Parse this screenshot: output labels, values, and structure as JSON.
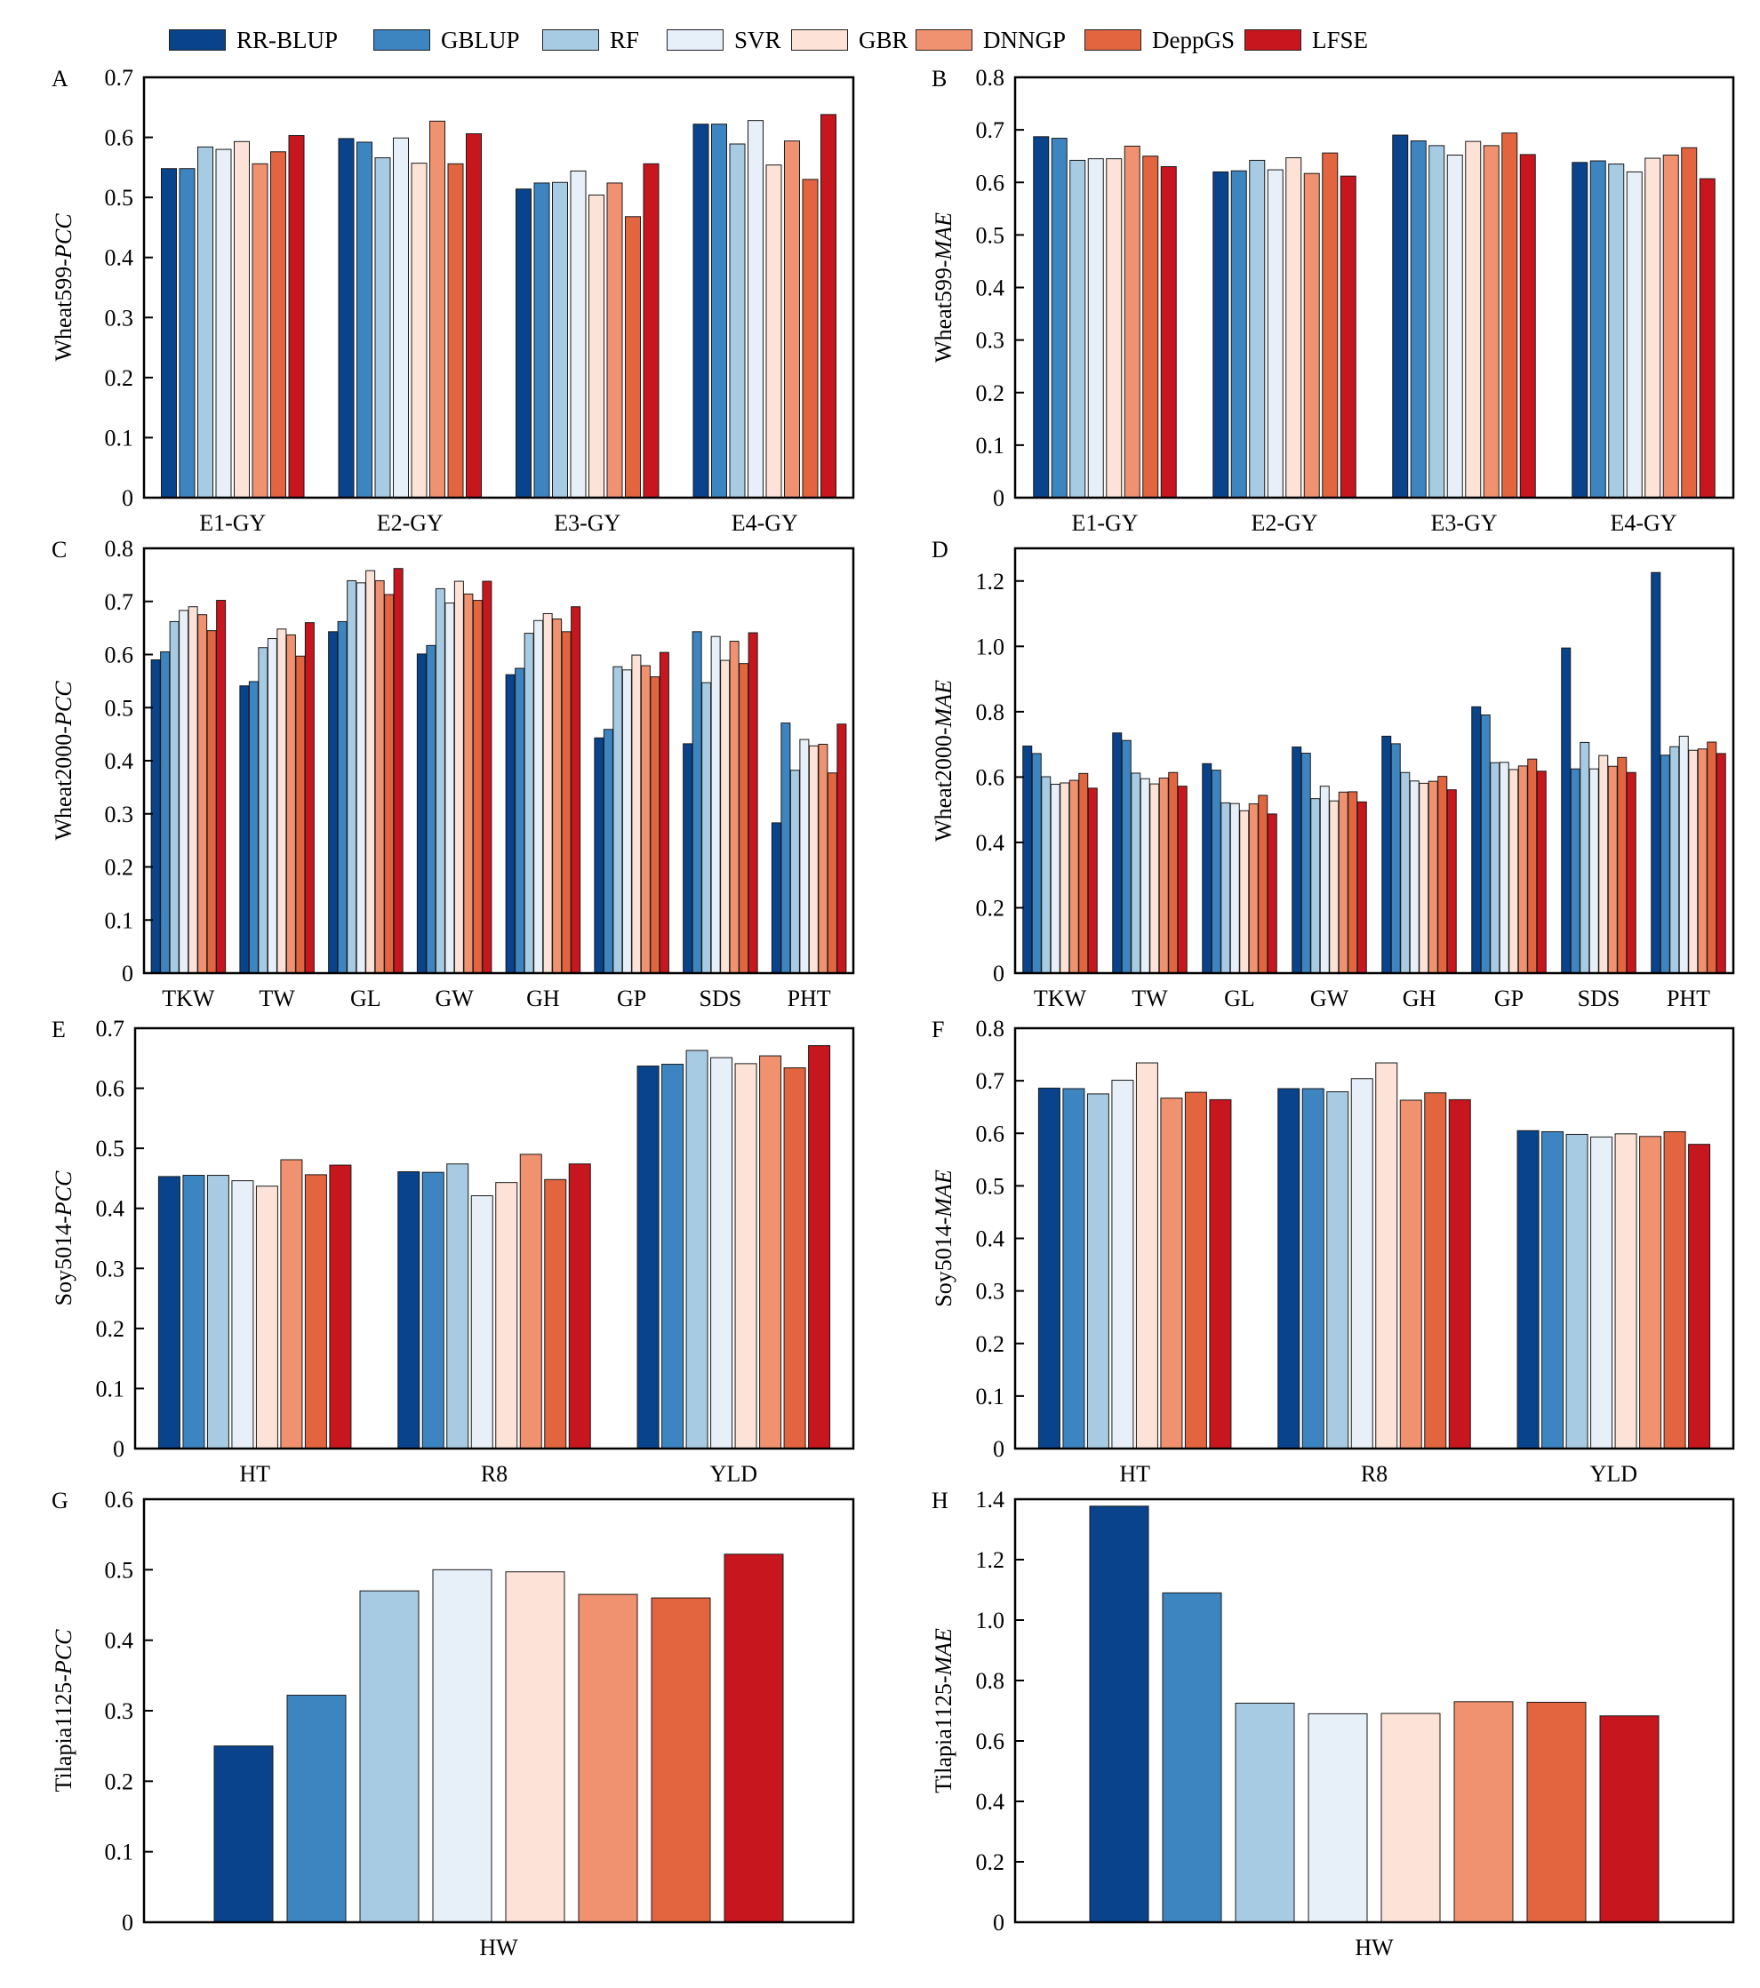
{
  "legend": {
    "methods": [
      {
        "name": "RR-BLUP",
        "color": "#08438c"
      },
      {
        "name": "GBLUP",
        "color": "#3d85c1"
      },
      {
        "name": "RF",
        "color": "#a7cbe2"
      },
      {
        "name": "SVR",
        "color": "#e7eff8"
      },
      {
        "name": "GBR",
        "color": "#fde3d7"
      },
      {
        "name": "DNNGP",
        "color": "#f0926f"
      },
      {
        "name": "DeppGS",
        "color": "#e3653f"
      },
      {
        "name": "LFSE",
        "color": "#c7161d"
      }
    ]
  },
  "chart_data": [
    {
      "id": "A",
      "panel_label": "A",
      "type": "bar",
      "ylabel_prefix": "Wheat599-",
      "ylabel_metric": "PCC",
      "ylim": [
        0,
        0.7
      ],
      "yticks": [
        "0",
        "0.1",
        "0.2",
        "0.3",
        "0.4",
        "0.5",
        "0.6",
        "0.7"
      ],
      "categories": [
        "E1-GY",
        "E2-GY",
        "E3-GY",
        "E4-GY"
      ],
      "series": [
        {
          "name": "RR-BLUP",
          "values": [
            0.548,
            0.598,
            0.514,
            0.622
          ]
        },
        {
          "name": "GBLUP",
          "values": [
            0.548,
            0.592,
            0.524,
            0.622
          ]
        },
        {
          "name": "RF",
          "values": [
            0.584,
            0.566,
            0.525,
            0.589
          ]
        },
        {
          "name": "SVR",
          "values": [
            0.58,
            0.599,
            0.544,
            0.628
          ]
        },
        {
          "name": "GBR",
          "values": [
            0.593,
            0.557,
            0.504,
            0.554
          ]
        },
        {
          "name": "DNNGP",
          "values": [
            0.556,
            0.627,
            0.524,
            0.594
          ]
        },
        {
          "name": "DeppGS",
          "values": [
            0.576,
            0.556,
            0.468,
            0.53
          ]
        },
        {
          "name": "LFSE",
          "values": [
            0.603,
            0.606,
            0.556,
            0.638
          ]
        }
      ]
    },
    {
      "id": "B",
      "panel_label": "B",
      "type": "bar",
      "ylabel_prefix": "Wheat599-",
      "ylabel_metric": "MAE",
      "ylim": [
        0,
        0.8
      ],
      "yticks": [
        "0",
        "0.1",
        "0.2",
        "0.3",
        "0.4",
        "0.5",
        "0.6",
        "0.7",
        "0.8"
      ],
      "categories": [
        "E1-GY",
        "E2-GY",
        "E3-GY",
        "E4-GY"
      ],
      "series": [
        {
          "name": "RR-BLUP",
          "values": [
            0.687,
            0.62,
            0.69,
            0.638
          ]
        },
        {
          "name": "GBLUP",
          "values": [
            0.684,
            0.622,
            0.679,
            0.641
          ]
        },
        {
          "name": "RF",
          "values": [
            0.642,
            0.642,
            0.67,
            0.635
          ]
        },
        {
          "name": "SVR",
          "values": [
            0.645,
            0.624,
            0.652,
            0.62
          ]
        },
        {
          "name": "GBR",
          "values": [
            0.645,
            0.647,
            0.678,
            0.646
          ]
        },
        {
          "name": "DNNGP",
          "values": [
            0.669,
            0.617,
            0.67,
            0.652
          ]
        },
        {
          "name": "DeppGS",
          "values": [
            0.65,
            0.656,
            0.694,
            0.666
          ]
        },
        {
          "name": "LFSE",
          "values": [
            0.63,
            0.612,
            0.653,
            0.607
          ]
        }
      ]
    },
    {
      "id": "C",
      "panel_label": "C",
      "type": "bar",
      "ylabel_prefix": "Wheat2000-",
      "ylabel_metric": "PCC",
      "ylim": [
        0,
        0.8
      ],
      "yticks": [
        "0",
        "0.1",
        "0.2",
        "0.3",
        "0.4",
        "0.5",
        "0.6",
        "0.7",
        "0.8"
      ],
      "categories": [
        "TKW",
        "TW",
        "GL",
        "GW",
        "GH",
        "GP",
        "SDS",
        "PHT"
      ],
      "series": [
        {
          "name": "RR-BLUP",
          "values": [
            0.59,
            0.541,
            0.643,
            0.601,
            0.562,
            0.443,
            0.432,
            0.283
          ]
        },
        {
          "name": "GBLUP",
          "values": [
            0.605,
            0.549,
            0.662,
            0.617,
            0.574,
            0.459,
            0.643,
            0.471
          ]
        },
        {
          "name": "RF",
          "values": [
            0.662,
            0.613,
            0.739,
            0.724,
            0.64,
            0.577,
            0.547,
            0.382
          ]
        },
        {
          "name": "SVR",
          "values": [
            0.683,
            0.63,
            0.735,
            0.697,
            0.664,
            0.571,
            0.634,
            0.44
          ]
        },
        {
          "name": "GBR",
          "values": [
            0.69,
            0.648,
            0.758,
            0.738,
            0.677,
            0.599,
            0.589,
            0.428
          ]
        },
        {
          "name": "DNNGP",
          "values": [
            0.675,
            0.637,
            0.739,
            0.714,
            0.667,
            0.579,
            0.625,
            0.431
          ]
        },
        {
          "name": "DeppGS",
          "values": [
            0.645,
            0.597,
            0.713,
            0.702,
            0.643,
            0.558,
            0.583,
            0.377
          ]
        },
        {
          "name": "LFSE",
          "values": [
            0.702,
            0.66,
            0.762,
            0.738,
            0.69,
            0.604,
            0.641,
            0.469
          ]
        }
      ]
    },
    {
      "id": "D",
      "panel_label": "D",
      "type": "bar",
      "ylabel_prefix": "Wheat2000-",
      "ylabel_metric": "MAE",
      "ylim": [
        0,
        1.3
      ],
      "yticks": [
        "0",
        "0.2",
        "0.4",
        "0.6",
        "0.8",
        "1.0",
        "1.2"
      ],
      "categories": [
        "TKW",
        "TW",
        "GL",
        "GW",
        "GH",
        "GP",
        "SDS",
        "PHT"
      ],
      "series": [
        {
          "name": "RR-BLUP",
          "values": [
            0.695,
            0.735,
            0.641,
            0.692,
            0.725,
            0.815,
            0.995,
            1.226
          ]
        },
        {
          "name": "GBLUP",
          "values": [
            0.672,
            0.712,
            0.621,
            0.673,
            0.702,
            0.79,
            0.625,
            0.667
          ]
        },
        {
          "name": "RF",
          "values": [
            0.601,
            0.612,
            0.521,
            0.534,
            0.614,
            0.644,
            0.706,
            0.693
          ]
        },
        {
          "name": "SVR",
          "values": [
            0.578,
            0.595,
            0.519,
            0.572,
            0.588,
            0.645,
            0.625,
            0.725
          ]
        },
        {
          "name": "GBR",
          "values": [
            0.582,
            0.579,
            0.497,
            0.527,
            0.581,
            0.623,
            0.666,
            0.682
          ]
        },
        {
          "name": "DNNGP",
          "values": [
            0.59,
            0.597,
            0.518,
            0.554,
            0.587,
            0.634,
            0.633,
            0.686
          ]
        },
        {
          "name": "DeppGS",
          "values": [
            0.611,
            0.614,
            0.544,
            0.555,
            0.602,
            0.655,
            0.66,
            0.707
          ]
        },
        {
          "name": "LFSE",
          "values": [
            0.566,
            0.572,
            0.487,
            0.524,
            0.561,
            0.618,
            0.614,
            0.672
          ]
        }
      ]
    },
    {
      "id": "E",
      "panel_label": "E",
      "type": "bar",
      "ylabel_prefix": "Soy5014-",
      "ylabel_metric": "PCC",
      "ylim": [
        0,
        0.7
      ],
      "yticks": [
        "0",
        "0.1",
        "0.2",
        "0.3",
        "0.4",
        "0.5",
        "0.6",
        "0.7"
      ],
      "categories": [
        "HT",
        "R8",
        "YLD"
      ],
      "series": [
        {
          "name": "RR-BLUP",
          "values": [
            0.453,
            0.461,
            0.637
          ]
        },
        {
          "name": "GBLUP",
          "values": [
            0.455,
            0.46,
            0.64
          ]
        },
        {
          "name": "RF",
          "values": [
            0.455,
            0.474,
            0.663
          ]
        },
        {
          "name": "SVR",
          "values": [
            0.446,
            0.421,
            0.651
          ]
        },
        {
          "name": "GBR",
          "values": [
            0.437,
            0.443,
            0.641
          ]
        },
        {
          "name": "DNNGP",
          "values": [
            0.481,
            0.49,
            0.654
          ]
        },
        {
          "name": "DeppGS",
          "values": [
            0.456,
            0.448,
            0.634
          ]
        },
        {
          "name": "LFSE",
          "values": [
            0.472,
            0.474,
            0.671
          ]
        }
      ]
    },
    {
      "id": "F",
      "panel_label": "F",
      "type": "bar",
      "ylabel_prefix": "Soy5014-",
      "ylabel_metric": "MAE",
      "ylim": [
        0,
        0.8
      ],
      "yticks": [
        "0",
        "0.1",
        "0.2",
        "0.3",
        "0.4",
        "0.5",
        "0.6",
        "0.7",
        "0.8"
      ],
      "categories": [
        "HT",
        "R8",
        "YLD"
      ],
      "series": [
        {
          "name": "RR-BLUP",
          "values": [
            0.686,
            0.685,
            0.605
          ]
        },
        {
          "name": "GBLUP",
          "values": [
            0.685,
            0.685,
            0.603
          ]
        },
        {
          "name": "RF",
          "values": [
            0.675,
            0.679,
            0.598
          ]
        },
        {
          "name": "SVR",
          "values": [
            0.701,
            0.704,
            0.593
          ]
        },
        {
          "name": "GBR",
          "values": [
            0.734,
            0.734,
            0.599
          ]
        },
        {
          "name": "DNNGP",
          "values": [
            0.667,
            0.663,
            0.594
          ]
        },
        {
          "name": "DeppGS",
          "values": [
            0.678,
            0.677,
            0.603
          ]
        },
        {
          "name": "LFSE",
          "values": [
            0.664,
            0.664,
            0.579
          ]
        }
      ]
    },
    {
      "id": "G",
      "panel_label": "G",
      "type": "bar",
      "ylabel_prefix": "Tilapia1125-",
      "ylabel_metric": "PCC",
      "ylim": [
        0,
        0.6
      ],
      "yticks": [
        "0",
        "0.1",
        "0.2",
        "0.3",
        "0.4",
        "0.5",
        "0.6"
      ],
      "categories": [
        "HW"
      ],
      "series": [
        {
          "name": "RR-BLUP",
          "values": [
            0.25
          ]
        },
        {
          "name": "GBLUP",
          "values": [
            0.322
          ]
        },
        {
          "name": "RF",
          "values": [
            0.47
          ]
        },
        {
          "name": "SVR",
          "values": [
            0.5
          ]
        },
        {
          "name": "GBR",
          "values": [
            0.497
          ]
        },
        {
          "name": "DNNGP",
          "values": [
            0.465
          ]
        },
        {
          "name": "DeppGS",
          "values": [
            0.46
          ]
        },
        {
          "name": "LFSE",
          "values": [
            0.522
          ]
        }
      ]
    },
    {
      "id": "H",
      "panel_label": "H",
      "type": "bar",
      "ylabel_prefix": "Tilapia1125-",
      "ylabel_metric": "MAE",
      "ylim": [
        0,
        1.4
      ],
      "yticks": [
        "0",
        "0.2",
        "0.4",
        "0.6",
        "0.8",
        "1.0",
        "1.2",
        "1.4"
      ],
      "categories": [
        "HW"
      ],
      "series": [
        {
          "name": "RR-BLUP",
          "values": [
            1.377
          ]
        },
        {
          "name": "GBLUP",
          "values": [
            1.09
          ]
        },
        {
          "name": "RF",
          "values": [
            0.725
          ]
        },
        {
          "name": "SVR",
          "values": [
            0.69
          ]
        },
        {
          "name": "GBR",
          "values": [
            0.691
          ]
        },
        {
          "name": "DNNGP",
          "values": [
            0.73
          ]
        },
        {
          "name": "DeppGS",
          "values": [
            0.728
          ]
        },
        {
          "name": "LFSE",
          "values": [
            0.683
          ]
        }
      ]
    }
  ]
}
